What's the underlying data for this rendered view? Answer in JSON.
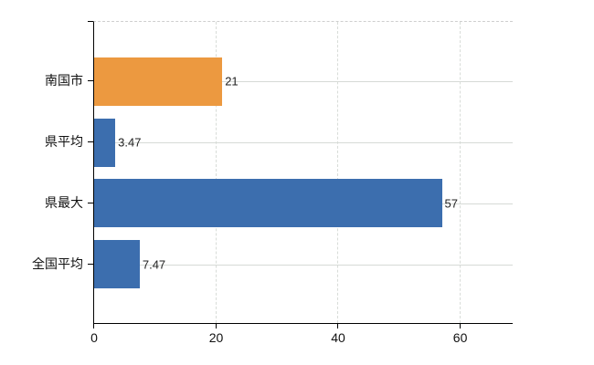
{
  "chart_data": {
    "type": "bar",
    "orientation": "horizontal",
    "title": "",
    "xlabel": "",
    "ylabel": "",
    "categories": [
      "南国市",
      "県平均",
      "県最大",
      "全国平均"
    ],
    "values": [
      21,
      3.47,
      57,
      7.47
    ],
    "data_labels": [
      "21",
      "3.47",
      "57",
      "7.47"
    ],
    "bar_colors": [
      "#ec9940",
      "#3c6eae",
      "#3c6eae",
      "#3c6eae"
    ],
    "x_ticks": [
      0,
      20,
      40,
      60
    ],
    "x_tick_labels": [
      "0",
      "20",
      "40",
      "60"
    ],
    "xlim": [
      0,
      68.6
    ],
    "grid": true,
    "legend_position": "none"
  },
  "colors": {
    "background": "#ffffff",
    "bar_orange": "#ec9940",
    "bar_blue": "#3c6eae",
    "gridline": "#d6dad6",
    "axis": "#000000",
    "text": "#1a1a1a"
  }
}
